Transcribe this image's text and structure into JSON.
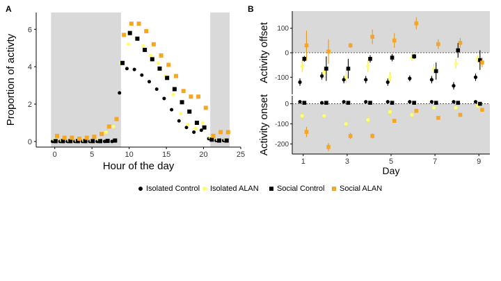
{
  "panel_labels": {
    "a": "A",
    "b": "B"
  },
  "colors": {
    "isolated_control": "#000000",
    "isolated_alan": "#ffff66",
    "social_control": "#000000",
    "social_alan": "#f5a623",
    "shade": "#d9d9d9",
    "errorbar_iso_alan": "#f2e24a",
    "errorbar_soc_alan": "#e8961e"
  },
  "legend": [
    {
      "label": "Isolated Control",
      "shape": "circle",
      "color": "#000000"
    },
    {
      "label": "Isolated ALAN",
      "shape": "circle",
      "color": "#ffff66"
    },
    {
      "label": "Social Control",
      "shape": "square",
      "color": "#000000"
    },
    {
      "label": "Social ALAN",
      "shape": "square",
      "color": "#f5a623"
    }
  ],
  "chart_data": [
    {
      "type": "scatter",
      "title": "",
      "xlabel": "Hour of the day",
      "ylabel": "Proportion of activty",
      "xlim": [
        -2.5,
        25
      ],
      "ylim": [
        -0.3,
        6.9
      ],
      "xticks": [
        0,
        5,
        10,
        15,
        20,
        25
      ],
      "yticks": [
        0,
        2,
        4,
        6
      ],
      "shaded_x": [
        [
          -0.5,
          8.9
        ],
        [
          20.9,
          23.5
        ]
      ],
      "x": [
        0,
        1,
        2,
        3,
        4,
        5,
        6,
        7,
        8,
        9,
        10,
        11,
        12,
        13,
        14,
        15,
        16,
        17,
        18,
        19,
        20,
        21,
        22,
        23
      ],
      "series": [
        {
          "name": "Isolated Control",
          "shape": "circle",
          "offset": -0.3,
          "values": [
            0,
            0,
            0,
            0,
            0,
            0,
            0,
            0,
            0,
            2.6,
            3.9,
            3.85,
            3.55,
            3.2,
            2.8,
            2.3,
            1.7,
            1.1,
            0.75,
            0.5,
            0.6,
            0.15,
            0.05,
            0.05
          ]
        },
        {
          "name": "Isolated ALAN",
          "shape": "circle",
          "offset": -0.1,
          "values": [
            0.1,
            0.05,
            0.05,
            0.05,
            0.05,
            0.05,
            0.1,
            0.5,
            0.8,
            4.2,
            5.2,
            5.5,
            5.1,
            4.6,
            4.2,
            3.5,
            2.5,
            1.5,
            0.9,
            0.7,
            1.0,
            0.2,
            0.1,
            0.1
          ]
        },
        {
          "name": "Social Control",
          "shape": "square",
          "offset": 0.1,
          "values": [
            0.02,
            0.02,
            0.02,
            0.02,
            0.02,
            0.02,
            0.02,
            0.03,
            0.05,
            4.2,
            5.8,
            5.5,
            4.9,
            4.4,
            3.9,
            3.4,
            2.8,
            2.1,
            1.6,
            1.0,
            0.75,
            0.1,
            0.05,
            0.05
          ]
        },
        {
          "name": "Social ALAN",
          "shape": "square",
          "offset": 0.3,
          "values": [
            0.3,
            0.2,
            0.2,
            0.15,
            0.2,
            0.25,
            0.4,
            0.8,
            1.2,
            5.7,
            6.3,
            6.3,
            5.9,
            5.2,
            4.6,
            4.1,
            3.5,
            2.7,
            2.4,
            2.4,
            1.8,
            0.3,
            0.5,
            0.5
          ]
        }
      ]
    },
    {
      "type": "scatter",
      "title": "",
      "xlabel": "",
      "ylabel": "Activity offset",
      "xlim": [
        0.5,
        9.5
      ],
      "ylim": [
        -170,
        170
      ],
      "yticks": [
        100,
        0,
        -100
      ],
      "dashed_zero": true,
      "x": [
        1,
        2,
        3,
        4,
        5,
        6,
        7,
        8,
        9
      ],
      "series": [
        {
          "name": "Isolated Control",
          "shape": "circle",
          "offset": -0.15,
          "values": [
            -120,
            -95,
            -110,
            -110,
            -120,
            -105,
            -110,
            -135,
            -100
          ],
          "errors": [
            15,
            15,
            15,
            15,
            15,
            12,
            15,
            15,
            15
          ]
        },
        {
          "name": "Isolated ALAN",
          "shape": "circle",
          "offset": -0.05,
          "values": [
            -55,
            -80,
            -100,
            -55,
            -100,
            -20,
            -65,
            -45,
            -25
          ],
          "errors": [
            25,
            25,
            25,
            25,
            20,
            15,
            20,
            20,
            15
          ]
        },
        {
          "name": "Social Control",
          "shape": "square",
          "offset": 0.05,
          "values": [
            -25,
            -65,
            -65,
            -25,
            -20,
            -15,
            -75,
            10,
            -30
          ],
          "errors": [
            12,
            50,
            40,
            15,
            15,
            10,
            35,
            30,
            40
          ]
        },
        {
          "name": "Social ALAN",
          "shape": "square",
          "offset": 0.15,
          "values": [
            30,
            5,
            30,
            65,
            50,
            120,
            35,
            40,
            -40
          ],
          "errors": [
            60,
            50,
            10,
            30,
            30,
            25,
            20,
            20,
            20
          ]
        }
      ]
    },
    {
      "type": "scatter",
      "title": "",
      "xlabel": "Day",
      "ylabel": "Activity onset",
      "xlim": [
        0.5,
        9.5
      ],
      "ylim": [
        -250,
        40
      ],
      "yticks": [
        0,
        -100,
        -200
      ],
      "xticks": [
        1,
        3,
        5,
        7,
        9
      ],
      "dashed_zero": true,
      "x": [
        1,
        2,
        3,
        4,
        5,
        6,
        7,
        8,
        9
      ],
      "series": [
        {
          "name": "Isolated Control",
          "shape": "circle",
          "offset": -0.15,
          "values": [
            10,
            5,
            10,
            10,
            10,
            10,
            10,
            10,
            10
          ],
          "errors": [
            5,
            5,
            5,
            5,
            5,
            5,
            5,
            5,
            5
          ]
        },
        {
          "name": "Isolated ALAN",
          "shape": "circle",
          "offset": -0.05,
          "values": [
            -60,
            -60,
            -100,
            -80,
            -40,
            -55,
            -20,
            -20,
            -10
          ],
          "errors": [
            20,
            15,
            20,
            20,
            20,
            20,
            15,
            15,
            10
          ]
        },
        {
          "name": "Social Control",
          "shape": "square",
          "offset": 0.05,
          "values": [
            5,
            5,
            5,
            5,
            5,
            5,
            5,
            5,
            0
          ],
          "errors": [
            5,
            5,
            5,
            5,
            5,
            5,
            5,
            5,
            5
          ]
        },
        {
          "name": "Social ALAN",
          "shape": "square",
          "offset": 0.15,
          "values": [
            -140,
            -215,
            -160,
            -160,
            -85,
            -35,
            -70,
            -55,
            -30
          ],
          "errors": [
            25,
            20,
            15,
            12,
            10,
            10,
            8,
            8,
            8
          ]
        }
      ]
    }
  ]
}
